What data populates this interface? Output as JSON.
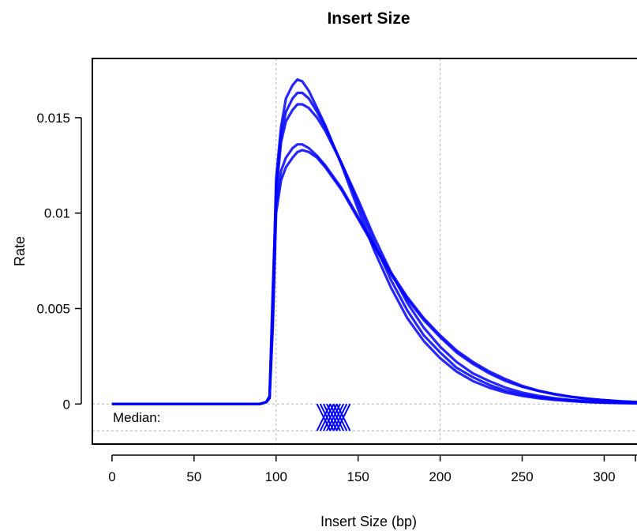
{
  "chart_data": {
    "type": "line",
    "title": "Insert Size",
    "xlabel": "Insert Size (bp)",
    "ylabel": "Rate",
    "xlim": [
      -12,
      320
    ],
    "ylim": [
      -0.0021,
      0.0181
    ],
    "x_ticks": [
      0,
      50,
      100,
      150,
      200,
      250,
      300
    ],
    "y_ticks": [
      {
        "value": 0,
        "label": "0"
      },
      {
        "value": 0.005,
        "label": "0.005"
      },
      {
        "value": 0.01,
        "label": "0.01"
      },
      {
        "value": 0.015,
        "label": "0.015"
      }
    ],
    "gridlines_x": [
      100,
      200
    ],
    "gridlines_y": [
      0,
      -0.0014
    ],
    "line_color": "#0000ff",
    "median_label": "Median:",
    "median_y": -0.0007,
    "medians": [
      129,
      131,
      133,
      135,
      137,
      139,
      141
    ],
    "series": [
      {
        "x": [
          0,
          90,
          94,
          96,
          98,
          100,
          103,
          106,
          110,
          113,
          116,
          120,
          125,
          130,
          140,
          150,
          160,
          170,
          180,
          190,
          200,
          210,
          220,
          230,
          240,
          250,
          260,
          270,
          280,
          290,
          300,
          310,
          320
        ],
        "y": [
          0,
          0,
          0.0001,
          0.0004,
          0.0048,
          0.0118,
          0.0145,
          0.016,
          0.0167,
          0.017,
          0.0169,
          0.0164,
          0.0155,
          0.0146,
          0.0125,
          0.0102,
          0.008,
          0.0061,
          0.0045,
          0.0033,
          0.0024,
          0.0017,
          0.0012,
          0.00085,
          0.0006,
          0.00042,
          0.0003,
          0.00021,
          0.00015,
          0.0001,
          7e-05,
          5e-05,
          3e-05
        ]
      },
      {
        "x": [
          0,
          90,
          94,
          96,
          98,
          100,
          103,
          106,
          110,
          113,
          116,
          120,
          125,
          130,
          140,
          150,
          160,
          170,
          180,
          190,
          200,
          210,
          220,
          230,
          240,
          250,
          260,
          270,
          280,
          290,
          300,
          310,
          320
        ],
        "y": [
          0,
          0,
          0.0001,
          0.0004,
          0.006,
          0.011,
          0.0137,
          0.0148,
          0.0154,
          0.0157,
          0.0157,
          0.0155,
          0.015,
          0.0143,
          0.0126,
          0.0107,
          0.0087,
          0.0069,
          0.0053,
          0.004,
          0.003,
          0.0022,
          0.0016,
          0.0012,
          0.00085,
          0.0006,
          0.00043,
          0.0003,
          0.00021,
          0.00015,
          0.0001,
          7e-05,
          5e-05
        ]
      },
      {
        "x": [
          0,
          90,
          94,
          96,
          98,
          100,
          103,
          106,
          110,
          113,
          116,
          120,
          125,
          130,
          140,
          150,
          160,
          170,
          180,
          190,
          200,
          210,
          220,
          230,
          240,
          250,
          260,
          270,
          280,
          290,
          300,
          310,
          320
        ],
        "y": [
          0,
          0,
          0.0001,
          0.0003,
          0.004,
          0.01,
          0.0117,
          0.0124,
          0.0129,
          0.0132,
          0.0133,
          0.0132,
          0.0129,
          0.0124,
          0.0112,
          0.0097,
          0.0082,
          0.0068,
          0.0055,
          0.0044,
          0.0035,
          0.0027,
          0.0021,
          0.0016,
          0.0012,
          0.0009,
          0.00068,
          0.0005,
          0.00037,
          0.00027,
          0.0002,
          0.00014,
          0.0001
        ]
      },
      {
        "x": [
          0,
          90,
          94,
          96,
          98,
          100,
          103,
          106,
          110,
          113,
          116,
          120,
          125,
          130,
          140,
          150,
          160,
          170,
          180,
          190,
          200,
          210,
          220,
          230,
          240,
          250,
          260,
          270,
          280,
          290,
          300,
          310,
          320
        ],
        "y": [
          0,
          0,
          0.0001,
          0.0003,
          0.0045,
          0.0105,
          0.0122,
          0.0129,
          0.0134,
          0.0136,
          0.0136,
          0.0134,
          0.013,
          0.0125,
          0.0113,
          0.0098,
          0.0083,
          0.0069,
          0.0056,
          0.0045,
          0.0036,
          0.0028,
          0.0022,
          0.0017,
          0.0013,
          0.00095,
          0.0007,
          0.00052,
          0.00038,
          0.00028,
          0.0002,
          0.00014,
          0.0001
        ]
      },
      {
        "x": [
          0,
          90,
          94,
          96,
          98,
          100,
          103,
          106,
          110,
          113,
          116,
          120,
          125,
          130,
          140,
          150,
          160,
          170,
          180,
          190,
          200,
          210,
          220,
          230,
          240,
          250,
          260,
          270,
          280,
          290,
          300,
          310,
          320
        ],
        "y": [
          0,
          0,
          0.0001,
          0.0004,
          0.0055,
          0.0114,
          0.0141,
          0.0153,
          0.016,
          0.0163,
          0.0163,
          0.016,
          0.0153,
          0.0145,
          0.0126,
          0.0105,
          0.0084,
          0.0065,
          0.0049,
          0.0036,
          0.0027,
          0.0019,
          0.0014,
          0.001,
          0.0007,
          0.0005,
          0.00036,
          0.00025,
          0.00018,
          0.00012,
          8e-05,
          6e-05,
          4e-05
        ]
      }
    ]
  }
}
